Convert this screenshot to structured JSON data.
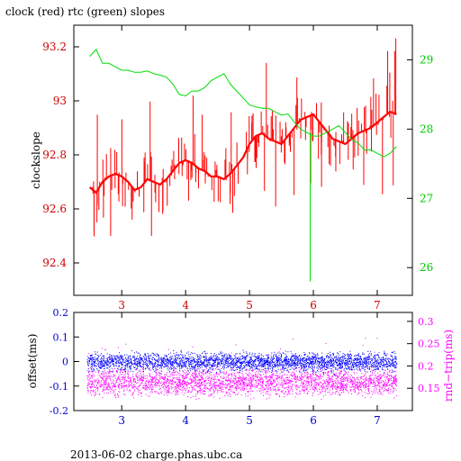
{
  "title": "clock (red) rtc (green) slopes",
  "footer": "2013-06-02 charge.phas.ubc.ca",
  "colors": {
    "clock": "#ff0000",
    "rtc": "#00dd00",
    "offset": "#0000ff",
    "rndtrip": "#ff00ff",
    "axis_left": "#cc0000",
    "axis_right": "#00cc00",
    "axis_bottom": "#0000cc",
    "axis_x": "#cc0000"
  },
  "chart_data": [
    {
      "type": "line",
      "title": "clock (red) rtc (green) slopes",
      "xlabel": "",
      "ylabel": "clockslope",
      "xlim": [
        2.25,
        7.55
      ],
      "ylim": [
        92.28,
        93.28
      ],
      "xticks": [
        "3",
        "4",
        "5",
        "6",
        "7"
      ],
      "yticks_left": [
        "92.4",
        "92.6",
        "92.8",
        "93",
        "93.2"
      ],
      "yticks_right": [
        "26",
        "27",
        "28",
        "29"
      ],
      "y2lim": [
        25.6,
        29.5
      ],
      "grid": false,
      "series": [
        {
          "axis": "left",
          "color": "#ff0000",
          "x": [
            2.5,
            2.6,
            2.7,
            2.8,
            2.9,
            3.0,
            3.1,
            3.2,
            3.3,
            3.4,
            3.5,
            3.6,
            3.7,
            3.8,
            3.9,
            4.0,
            4.1,
            4.2,
            4.3,
            4.4,
            4.5,
            4.6,
            4.7,
            4.8,
            4.9,
            5.0,
            5.1,
            5.2,
            5.3,
            5.4,
            5.5,
            5.6,
            5.7,
            5.8,
            5.9,
            6.0,
            6.1,
            6.2,
            6.3,
            6.4,
            6.5,
            6.6,
            6.7,
            6.8,
            6.9,
            7.0,
            7.1,
            7.2,
            7.3
          ],
          "values": [
            92.68,
            92.66,
            92.7,
            92.72,
            92.73,
            92.72,
            92.7,
            92.67,
            92.68,
            92.71,
            92.7,
            92.69,
            92.71,
            92.74,
            92.77,
            92.78,
            92.77,
            92.75,
            92.74,
            92.72,
            92.72,
            92.71,
            92.73,
            92.76,
            92.79,
            92.84,
            92.87,
            92.88,
            92.86,
            92.85,
            92.84,
            92.87,
            92.9,
            92.93,
            92.94,
            92.95,
            92.92,
            92.89,
            92.86,
            92.85,
            92.84,
            92.86,
            92.88,
            92.89,
            92.9,
            92.92,
            92.94,
            92.96,
            92.95
          ]
        },
        {
          "axis": "right",
          "color": "#00dd00",
          "x": [
            2.5,
            2.6,
            2.7,
            2.8,
            2.9,
            3.0,
            3.1,
            3.2,
            3.3,
            3.4,
            3.5,
            3.6,
            3.7,
            3.8,
            3.9,
            4.0,
            4.1,
            4.2,
            4.3,
            4.4,
            4.5,
            4.6,
            4.7,
            4.8,
            4.9,
            5.0,
            5.1,
            5.2,
            5.3,
            5.4,
            5.5,
            5.6,
            5.7,
            5.8,
            5.9,
            6.0,
            6.1,
            6.2,
            6.3,
            6.4,
            6.5,
            6.6,
            6.7,
            6.8,
            6.9,
            7.0,
            7.1,
            7.2,
            7.3
          ],
          "values": [
            29.05,
            29.15,
            28.95,
            28.95,
            28.9,
            28.85,
            28.85,
            28.82,
            28.82,
            28.84,
            28.8,
            28.78,
            28.75,
            28.65,
            28.5,
            28.48,
            28.55,
            28.55,
            28.6,
            28.7,
            28.75,
            28.8,
            28.65,
            28.55,
            28.45,
            28.35,
            28.32,
            28.3,
            28.3,
            28.25,
            28.2,
            28.22,
            28.1,
            28.0,
            27.95,
            27.9,
            27.9,
            27.95,
            28.0,
            28.05,
            27.95,
            27.85,
            27.8,
            27.7,
            27.7,
            27.65,
            27.6,
            27.65,
            27.75
          ]
        }
      ]
    },
    {
      "type": "scatter",
      "xlabel": "",
      "ylabel": "offset(ms)",
      "y2label": "rnd−trip(ms)",
      "xlim": [
        2.25,
        7.55
      ],
      "ylim": [
        -0.2,
        0.2
      ],
      "y2lim": [
        0.1,
        0.32
      ],
      "xticks": [
        "3",
        "4",
        "5",
        "6",
        "7"
      ],
      "yticks_left": [
        "-0.2",
        "-0.1",
        "0",
        "0.1",
        "0.2"
      ],
      "yticks_right": [
        "0.15",
        "0.2",
        "0.25",
        "0.3"
      ],
      "series": [
        {
          "name": "offset",
          "color": "#0000ff",
          "axis": "left",
          "x_range": [
            2.45,
            7.3
          ],
          "center": 0.0,
          "spread": 0.025
        },
        {
          "name": "rnd-trip",
          "color": "#ff00ff",
          "axis": "right",
          "x_range": [
            2.45,
            7.3
          ],
          "center": 0.165,
          "spread": 0.018
        }
      ]
    }
  ]
}
